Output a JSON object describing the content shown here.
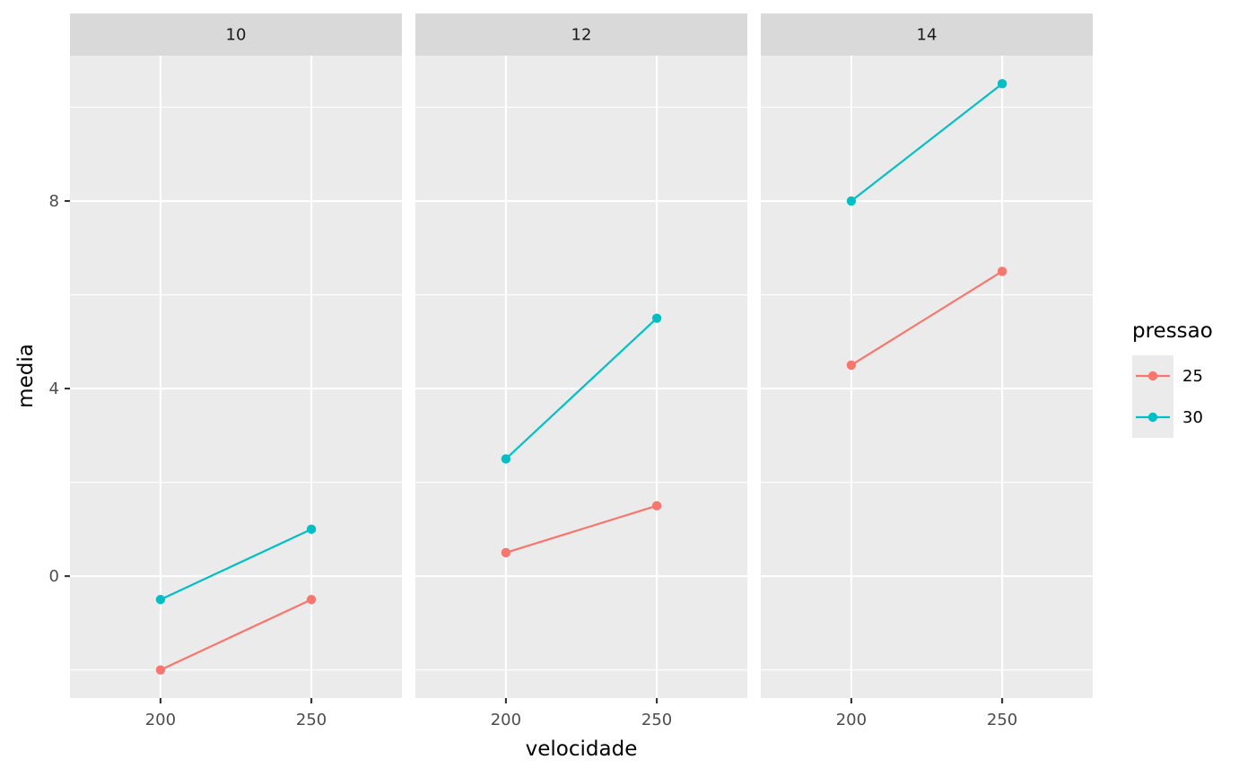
{
  "chart_data": {
    "type": "line",
    "xlabel": "velocidade",
    "ylabel": "media",
    "x_ticks": [
      200,
      250
    ],
    "y_ticks": [
      0,
      4,
      8
    ],
    "xlim": [
      170,
      280
    ],
    "ylim": [
      -2.6,
      11.1
    ],
    "grid": true,
    "legend": {
      "title": "pressao",
      "placement": "right",
      "entries": [
        {
          "label": "25",
          "color": "#F8766D"
        },
        {
          "label": "30",
          "color": "#00BFC4"
        }
      ]
    },
    "facets": [
      {
        "label": "10",
        "series": [
          {
            "name": "25",
            "x": [
              200,
              250
            ],
            "y": [
              -2.0,
              -0.5
            ]
          },
          {
            "name": "30",
            "x": [
              200,
              250
            ],
            "y": [
              -0.5,
              1.0
            ]
          }
        ]
      },
      {
        "label": "12",
        "series": [
          {
            "name": "25",
            "x": [
              200,
              250
            ],
            "y": [
              0.5,
              1.5
            ]
          },
          {
            "name": "30",
            "x": [
              200,
              250
            ],
            "y": [
              2.5,
              5.5
            ]
          }
        ]
      },
      {
        "label": "14",
        "series": [
          {
            "name": "25",
            "x": [
              200,
              250
            ],
            "y": [
              4.5,
              6.5
            ]
          },
          {
            "name": "30",
            "x": [
              200,
              250
            ],
            "y": [
              8.0,
              10.5
            ]
          }
        ]
      }
    ]
  }
}
